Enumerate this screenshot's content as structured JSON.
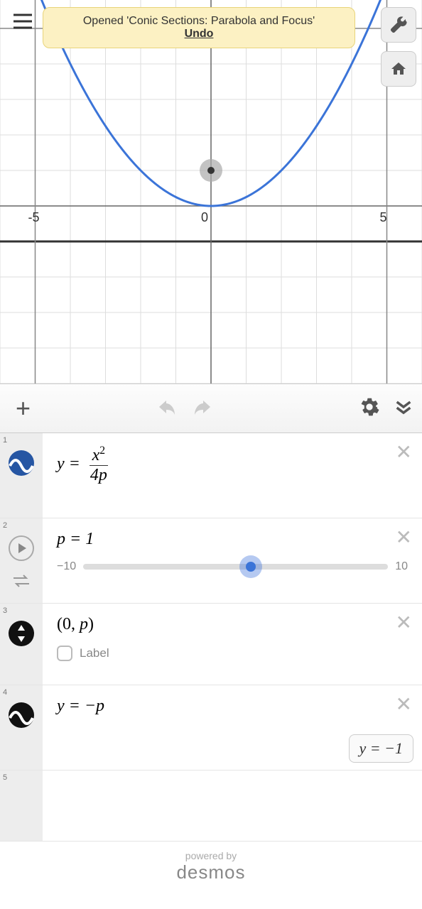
{
  "toast": {
    "text": "Opened 'Conic Sections: Parabola and Focus'",
    "undo": "Undo"
  },
  "graph": {
    "xlim": [
      -6,
      6
    ],
    "ylim": [
      -5,
      5.8
    ],
    "xticks": [
      -5,
      0,
      5
    ],
    "focus": [
      0,
      1
    ],
    "parabola_p": 1,
    "axis_color": "#666666",
    "grid_color": "#dddddd",
    "curve_color": "#3b74d8",
    "curve_width": 3,
    "focus_outer": "#aaaaaa",
    "focus_inner": "#333333",
    "x_axis_y": -1
  },
  "toolbar": {
    "plus": "+"
  },
  "rows": {
    "r1": {
      "num": "1",
      "lhs": "y = ",
      "frac_num": "x",
      "frac_exp": "2",
      "frac_den": "4p"
    },
    "r2": {
      "num": "2",
      "expr": "p = 1",
      "min": "−10",
      "max": "10",
      "value": 1,
      "range": [
        -10,
        10
      ]
    },
    "r3": {
      "num": "3",
      "expr": "(0, p)",
      "label": "Label"
    },
    "r4": {
      "num": "4",
      "expr": "y  =  −p",
      "value_chip": "y  =  −1"
    },
    "r5": {
      "num": "5"
    }
  },
  "footer": {
    "powered": "powered by",
    "brand": "desmos"
  },
  "colors": {
    "toast_bg": "#fcf1c3",
    "icon_blue": "#2656a3",
    "icon_black": "#111111"
  }
}
